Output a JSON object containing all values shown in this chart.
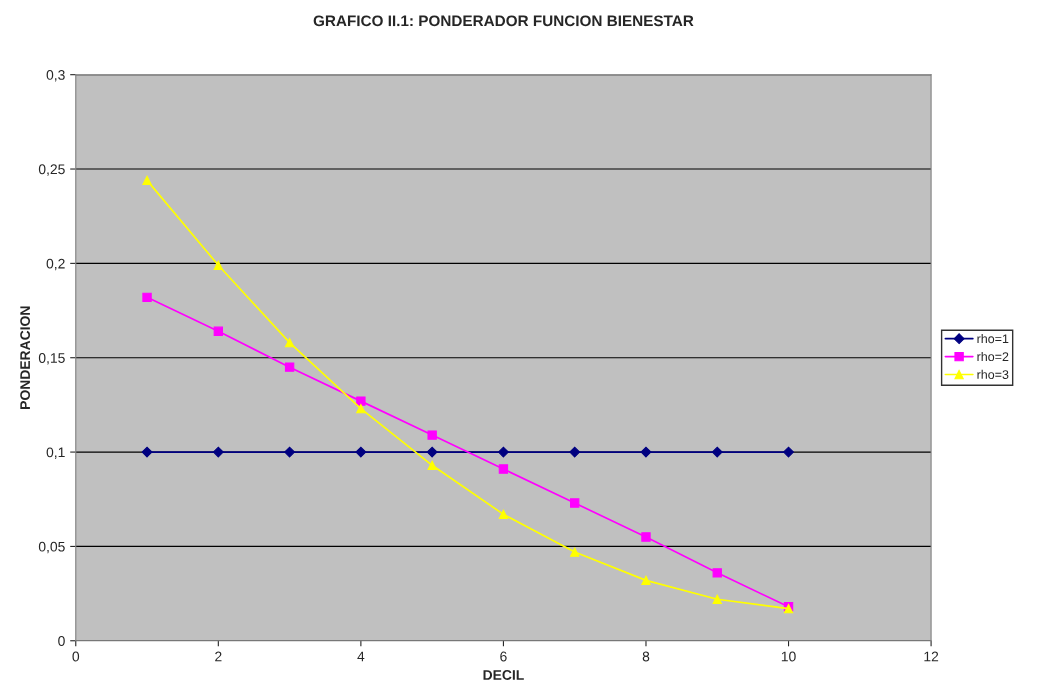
{
  "chart_data": {
    "type": "line",
    "title": "GRAFICO II.1: PONDERADOR FUNCION BIENESTAR",
    "xlabel": "DECIL",
    "ylabel": "PONDERACION",
    "x": [
      1,
      2,
      3,
      4,
      5,
      6,
      7,
      8,
      9,
      10
    ],
    "series": [
      {
        "name": "rho=1",
        "color": "#000080",
        "marker": "diamond",
        "values": [
          0.1,
          0.1,
          0.1,
          0.1,
          0.1,
          0.1,
          0.1,
          0.1,
          0.1,
          0.1
        ]
      },
      {
        "name": "rho=2",
        "color": "#ff00ff",
        "marker": "square",
        "values": [
          0.182,
          0.164,
          0.145,
          0.127,
          0.109,
          0.091,
          0.073,
          0.055,
          0.036,
          0.018
        ]
      },
      {
        "name": "rho=3",
        "color": "#ffff00",
        "marker": "triangle",
        "values": [
          0.244,
          0.199,
          0.158,
          0.123,
          0.093,
          0.067,
          0.047,
          0.032,
          0.022,
          0.017
        ]
      }
    ],
    "xlim": [
      0,
      12
    ],
    "xticks": [
      0,
      2,
      4,
      6,
      8,
      10,
      12
    ],
    "ylim": [
      0,
      0.3
    ],
    "yticks": [
      0,
      {
        "value": 0.05,
        "label": "0,05"
      },
      {
        "value": 0.1,
        "label": "0,1"
      },
      {
        "value": 0.15,
        "label": "0,15"
      },
      {
        "value": 0.2,
        "label": "0,2"
      },
      {
        "value": 0.25,
        "label": "0,25"
      },
      {
        "value": 0.3,
        "label": "0,3"
      }
    ],
    "grid": "y",
    "legend": "right",
    "line_style": "solid"
  }
}
